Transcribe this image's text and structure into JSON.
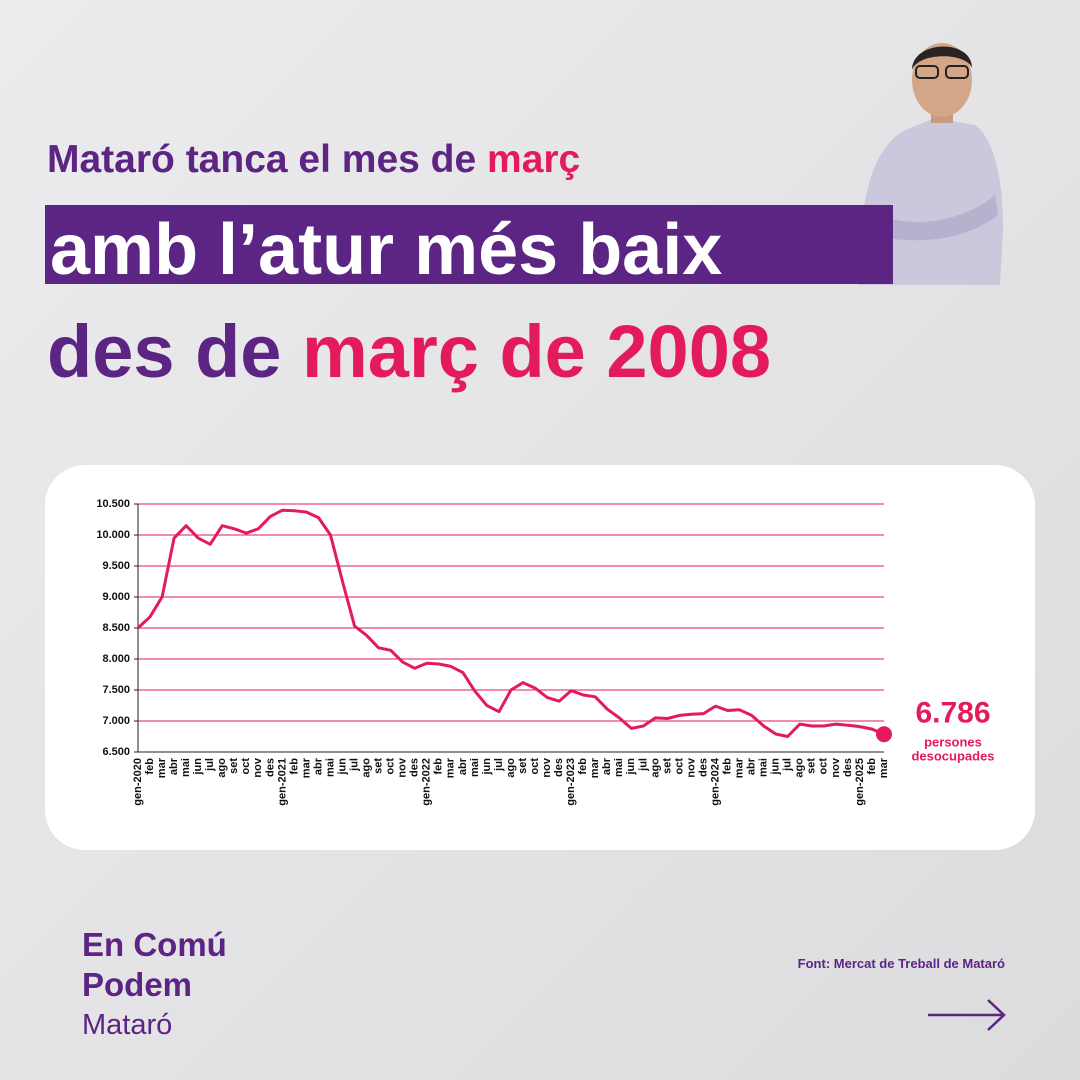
{
  "headline": {
    "line1": "Mataró tanca el mes de ",
    "line1_highlight": "març",
    "line2": "amb l’atur més baix",
    "line3": "des de ",
    "line3_highlight": "març de 2008"
  },
  "chart_data": {
    "type": "line",
    "categories": [
      "gen-2020",
      "feb",
      "mar",
      "abr",
      "mai",
      "jun",
      "jul",
      "ago",
      "set",
      "oct",
      "nov",
      "des",
      "gen-2021",
      "feb",
      "mar",
      "abr",
      "mai",
      "jun",
      "jul",
      "ago",
      "set",
      "oct",
      "nov",
      "des",
      "gen-2022",
      "feb",
      "mar",
      "abr",
      "mai",
      "jun",
      "jul",
      "ago",
      "set",
      "oct",
      "nov",
      "des",
      "gen-2023",
      "feb",
      "mar",
      "abr",
      "mai",
      "jun",
      "jul",
      "ago",
      "set",
      "oct",
      "nov",
      "des",
      "gen-2024",
      "feb",
      "mar",
      "abr",
      "mai",
      "jun",
      "jul",
      "ago",
      "set",
      "oct",
      "nov",
      "des",
      "gen-2025",
      "feb",
      "mar"
    ],
    "series": [
      {
        "name": "Persones desocupades",
        "color": "#e31b5a",
        "values": [
          8500,
          8680,
          9000,
          9950,
          10150,
          9950,
          9850,
          10150,
          10100,
          10030,
          10100,
          10300,
          10400,
          10390,
          10370,
          10280,
          10000,
          9250,
          8530,
          8380,
          8180,
          8140,
          7950,
          7850,
          7930,
          7920,
          7880,
          7780,
          7480,
          7250,
          7150,
          7500,
          7620,
          7530,
          7380,
          7320,
          7490,
          7420,
          7390,
          7190,
          7050,
          6880,
          6920,
          7050,
          7040,
          7090,
          7110,
          7120,
          7240,
          7170,
          7180,
          7090,
          6920,
          6790,
          6750,
          6950,
          6920,
          6920,
          6950,
          6930,
          6910,
          6870,
          6786
        ],
        "value_labels": [
          null,
          null,
          null,
          null,
          null,
          null,
          null,
          null,
          null,
          null,
          null,
          null,
          null,
          null,
          null,
          null,
          null,
          null,
          null,
          null,
          null,
          null,
          null,
          null,
          null,
          null,
          null,
          null,
          null,
          null,
          null,
          null,
          null,
          null,
          null,
          null,
          null,
          null,
          null,
          null,
          null,
          null,
          null,
          null,
          null,
          null,
          null,
          null,
          null,
          null,
          null,
          null,
          null,
          null,
          null,
          null,
          null,
          null,
          null,
          null,
          null,
          null,
          "6.786"
        ]
      }
    ],
    "annotation_lines": [
      "persones",
      "desocupades"
    ],
    "ylim": [
      6500,
      10500
    ],
    "yticks": [
      {
        "value": 6500,
        "label": "6.500"
      },
      {
        "value": 7000,
        "label": "7.000"
      },
      {
        "value": 7500,
        "label": "7.500"
      },
      {
        "value": 8000,
        "label": "8.000"
      },
      {
        "value": 8500,
        "label": "8.500"
      },
      {
        "value": 9000,
        "label": "9.000"
      },
      {
        "value": 9500,
        "label": "9.500"
      },
      {
        "value": 10000,
        "label": "10.000"
      },
      {
        "value": 10500,
        "label": "10.500"
      }
    ],
    "grid": true,
    "grid_color": "#e31b5a"
  },
  "footer": {
    "logo_line1": "En Comú",
    "logo_line2": "Podem",
    "logo_line3": "Mataró",
    "source": "Font: Mercat de Treball de Mataró"
  }
}
